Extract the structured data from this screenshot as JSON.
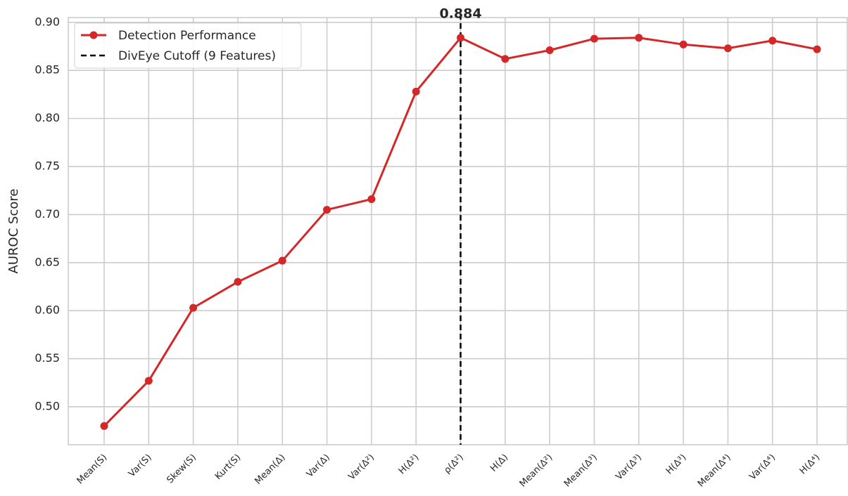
{
  "chart_data": {
    "type": "line",
    "y_label": "AUROC Score",
    "categories": [
      "Mean(S)",
      "Var(S)",
      "Skew(S)",
      "Kurt(S)",
      "Mean(Δ)",
      "Var(Δ)",
      "Var(Δ²)",
      "H(Δ²)",
      "ρ(Δ²)",
      "H(Δ)",
      "Mean(Δ²)",
      "Mean(Δ³)",
      "Var(Δ³)",
      "H(Δ³)",
      "Mean(Δ⁴)",
      "Var(Δ⁴)",
      "H(Δ⁴)"
    ],
    "series": [
      {
        "name": "Detection Performance",
        "color": "#d62728",
        "values": [
          0.48,
          0.527,
          0.603,
          0.63,
          0.652,
          0.705,
          0.716,
          0.828,
          0.884,
          0.862,
          0.871,
          0.883,
          0.884,
          0.877,
          0.873,
          0.881,
          0.872
        ]
      }
    ],
    "cutoff": {
      "name": "DivEye Cutoff (9 Features)",
      "index": 8,
      "color": "#000000"
    },
    "annotation": {
      "text": "0.884",
      "index": 8
    },
    "ylim": [
      0.4605,
      0.905
    ],
    "yticks": [
      {
        "value": 0.5,
        "label": "0.50"
      },
      {
        "value": 0.55,
        "label": "0.55"
      },
      {
        "value": 0.6,
        "label": "0.60"
      },
      {
        "value": 0.65,
        "label": "0.65"
      },
      {
        "value": 0.7,
        "label": "0.70"
      },
      {
        "value": 0.75,
        "label": "0.75"
      },
      {
        "value": 0.8,
        "label": "0.80"
      },
      {
        "value": 0.85,
        "label": "0.85"
      },
      {
        "value": 0.9,
        "label": "0.90"
      }
    ],
    "grid": true,
    "legend": "upper left"
  }
}
